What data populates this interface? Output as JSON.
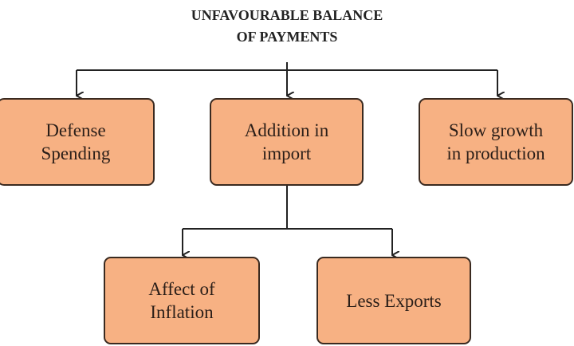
{
  "title": {
    "line1": "UNFAVOURABLE BALANCE",
    "line2": "OF PAYMENTS"
  },
  "nodes": {
    "defense": {
      "line1": "Defense",
      "line2": "Spending"
    },
    "import": {
      "line1": "Addition in",
      "line2": "import"
    },
    "growth": {
      "line1": "Slow growth",
      "line2": "in production"
    },
    "inflation": {
      "line1": "Affect of",
      "line2": "Inflation"
    },
    "exports": {
      "line1": "Less Exports"
    }
  },
  "colors": {
    "box_fill": "#f7b183",
    "box_border": "#3a2a20",
    "line": "#222222"
  }
}
